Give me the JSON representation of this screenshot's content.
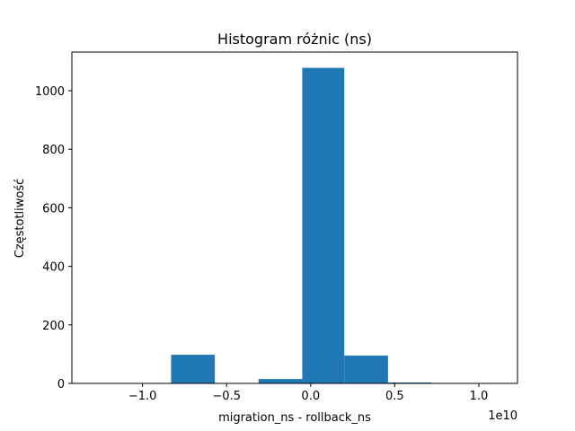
{
  "chart_data": {
    "type": "bar",
    "title": "Histogram różnic (ns)",
    "xlabel": "migration_ns - rollback_ns",
    "ylabel": "Częstotliwość",
    "x_offset_label": "1e10",
    "x_scale": 10000000000.0,
    "xlim": [
      -1.42,
      1.23
    ],
    "ylim": [
      0,
      1132
    ],
    "grid": false,
    "bar_color": "#1f77b4",
    "bins": [
      {
        "start": -1.34,
        "end": -1.08,
        "count": 0
      },
      {
        "start": -1.08,
        "end": -0.83,
        "count": 0
      },
      {
        "start": -0.83,
        "end": -0.57,
        "count": 98
      },
      {
        "start": -0.57,
        "end": -0.31,
        "count": 0
      },
      {
        "start": -0.31,
        "end": -0.05,
        "count": 15
      },
      {
        "start": -0.05,
        "end": 0.2,
        "count": 1078
      },
      {
        "start": 0.2,
        "end": 0.46,
        "count": 95
      },
      {
        "start": 0.46,
        "end": 0.72,
        "count": 3
      },
      {
        "start": 0.72,
        "end": 0.97,
        "count": 0
      },
      {
        "start": 0.97,
        "end": 1.23,
        "count": 1
      }
    ],
    "x_ticks": [
      {
        "value": -1.0,
        "label": "−1.0"
      },
      {
        "value": -0.5,
        "label": "−0.5"
      },
      {
        "value": 0.0,
        "label": "0.0"
      },
      {
        "value": 0.5,
        "label": "0.5"
      },
      {
        "value": 1.0,
        "label": "1.0"
      }
    ],
    "y_ticks": [
      {
        "value": 0,
        "label": "0"
      },
      {
        "value": 200,
        "label": "200"
      },
      {
        "value": 400,
        "label": "400"
      },
      {
        "value": 600,
        "label": "600"
      },
      {
        "value": 800,
        "label": "800"
      },
      {
        "value": 1000,
        "label": "1000"
      }
    ]
  }
}
